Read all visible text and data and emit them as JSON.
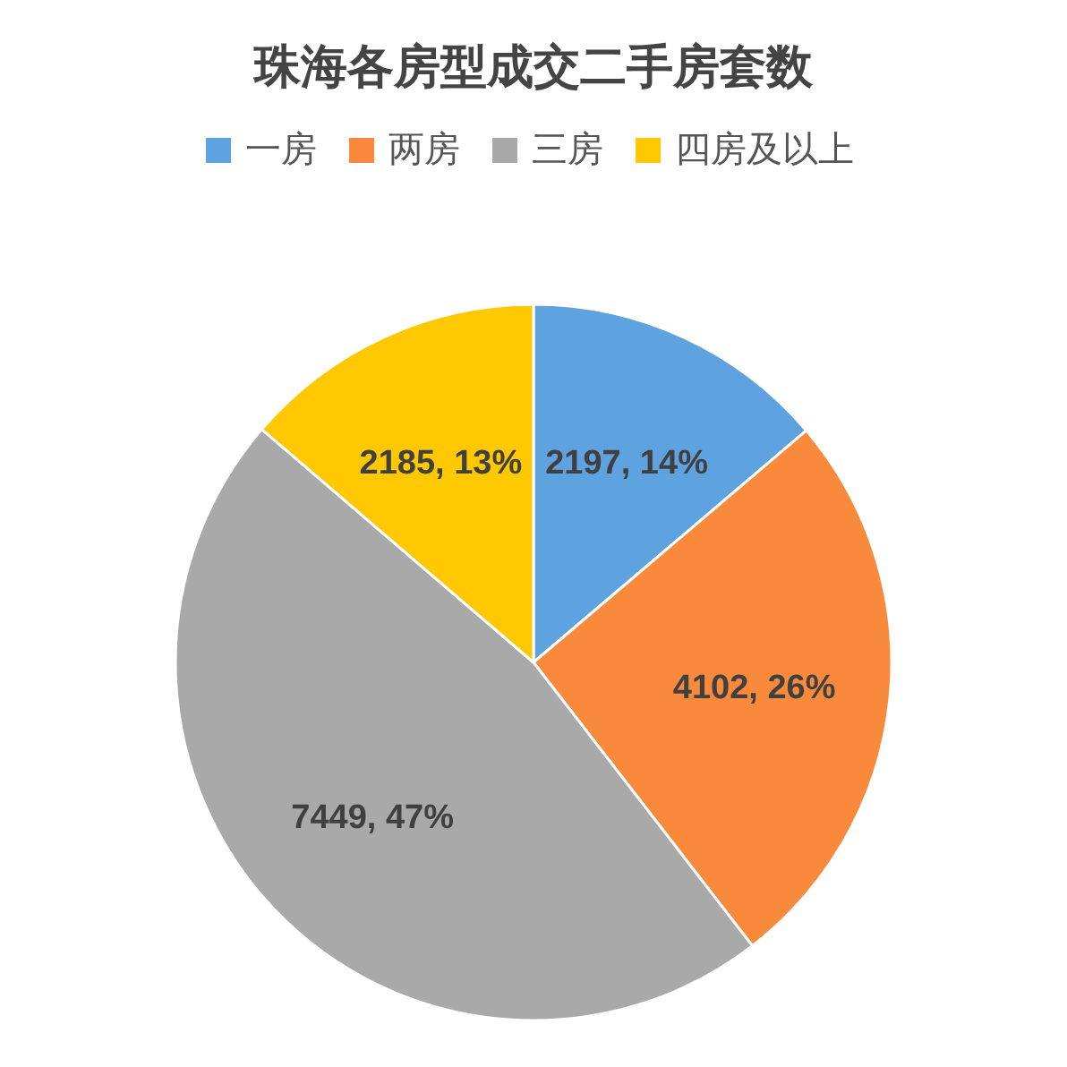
{
  "chart_data": {
    "type": "pie",
    "title": "珠海各房型成交二手房套数",
    "categories": [
      "一房",
      "两房",
      "三房",
      "四房及以上"
    ],
    "values": [
      2197,
      4102,
      7449,
      2185
    ],
    "colors": [
      "#5fa2e0",
      "#f98a3c",
      "#a9a9a9",
      "#ffc800"
    ],
    "value_labels": [
      "2197, 14%",
      "4102, 26%",
      "7449, 47%",
      "2185, 13%"
    ],
    "legend": "top"
  }
}
